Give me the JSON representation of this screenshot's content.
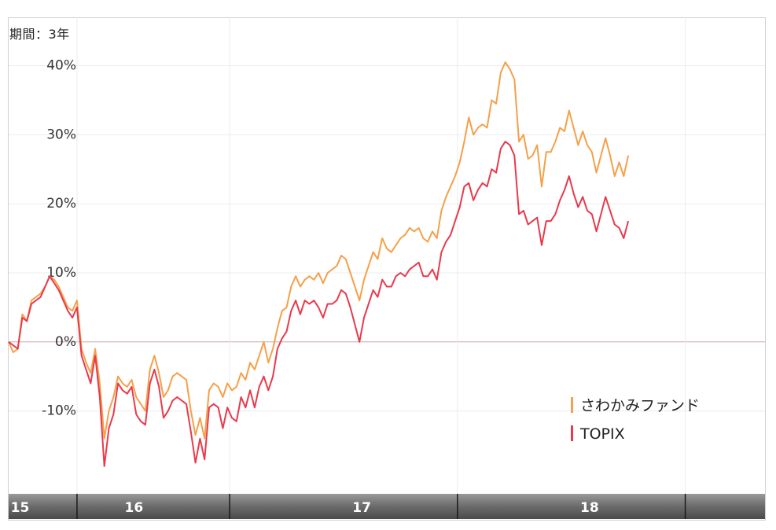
{
  "period_label": "期間：3年",
  "chart_data": {
    "type": "line",
    "yticks": [
      "40%",
      "30%",
      "20%",
      "10%",
      "0%",
      "-10%"
    ],
    "ylim": [
      -22,
      47
    ],
    "xlim": [
      2015.45,
      2018.77
    ],
    "xaxis_labels": [
      {
        "label": "15",
        "year": 2015.5
      },
      {
        "label": "16",
        "year": 2016
      },
      {
        "label": "17",
        "year": 2017
      },
      {
        "label": "18",
        "year": 2018
      }
    ],
    "xaxis_dividers": [
      2015.75,
      2016.42,
      2017.42,
      2018.42
    ],
    "zero_line": true,
    "grid": true,
    "legend_position": "bottom-right",
    "series": [
      {
        "name": "さわかみファンド",
        "color": "#f5a04a",
        "points": [
          [
            2015.45,
            0
          ],
          [
            2015.47,
            -1.5
          ],
          [
            2015.49,
            -1
          ],
          [
            2015.51,
            4
          ],
          [
            2015.53,
            3
          ],
          [
            2015.55,
            6
          ],
          [
            2015.57,
            6.5
          ],
          [
            2015.59,
            7
          ],
          [
            2015.61,
            8
          ],
          [
            2015.63,
            9.5
          ],
          [
            2015.65,
            9
          ],
          [
            2015.67,
            8
          ],
          [
            2015.69,
            6.5
          ],
          [
            2015.71,
            5
          ],
          [
            2015.73,
            4.5
          ],
          [
            2015.75,
            6
          ],
          [
            2015.77,
            -1
          ],
          [
            2015.79,
            -3
          ],
          [
            2015.81,
            -4.5
          ],
          [
            2015.83,
            -1
          ],
          [
            2015.85,
            -6
          ],
          [
            2015.87,
            -14
          ],
          [
            2015.89,
            -10
          ],
          [
            2015.91,
            -8
          ],
          [
            2015.93,
            -5
          ],
          [
            2015.95,
            -6
          ],
          [
            2015.97,
            -6.5
          ],
          [
            2015.99,
            -5.5
          ],
          [
            2016.01,
            -8
          ],
          [
            2016.03,
            -9
          ],
          [
            2016.05,
            -10
          ],
          [
            2016.07,
            -4
          ],
          [
            2016.09,
            -2
          ],
          [
            2016.11,
            -4.5
          ],
          [
            2016.13,
            -8
          ],
          [
            2016.15,
            -7
          ],
          [
            2016.17,
            -5
          ],
          [
            2016.19,
            -4.5
          ],
          [
            2016.21,
            -5
          ],
          [
            2016.23,
            -5.5
          ],
          [
            2016.25,
            -10
          ],
          [
            2016.27,
            -13.5
          ],
          [
            2016.29,
            -11
          ],
          [
            2016.31,
            -14
          ],
          [
            2016.33,
            -7
          ],
          [
            2016.35,
            -6
          ],
          [
            2016.37,
            -6.5
          ],
          [
            2016.39,
            -8
          ],
          [
            2016.41,
            -6
          ],
          [
            2016.43,
            -7
          ],
          [
            2016.45,
            -6.5
          ],
          [
            2016.47,
            -4.5
          ],
          [
            2016.49,
            -5.5
          ],
          [
            2016.51,
            -3
          ],
          [
            2016.53,
            -4
          ],
          [
            2016.55,
            -2
          ],
          [
            2016.57,
            0
          ],
          [
            2016.59,
            -3
          ],
          [
            2016.61,
            -1
          ],
          [
            2016.63,
            2
          ],
          [
            2016.65,
            4.5
          ],
          [
            2016.67,
            5
          ],
          [
            2016.69,
            8
          ],
          [
            2016.71,
            9.5
          ],
          [
            2016.73,
            8
          ],
          [
            2016.75,
            9
          ],
          [
            2016.77,
            9.5
          ],
          [
            2016.79,
            9
          ],
          [
            2016.81,
            10
          ],
          [
            2016.83,
            8.5
          ],
          [
            2016.85,
            10
          ],
          [
            2016.87,
            10.5
          ],
          [
            2016.89,
            11
          ],
          [
            2016.91,
            12.5
          ],
          [
            2016.93,
            12
          ],
          [
            2016.95,
            10
          ],
          [
            2016.97,
            8
          ],
          [
            2016.99,
            6
          ],
          [
            2017.01,
            9
          ],
          [
            2017.03,
            11
          ],
          [
            2017.05,
            13
          ],
          [
            2017.07,
            12
          ],
          [
            2017.09,
            15
          ],
          [
            2017.11,
            13.5
          ],
          [
            2017.13,
            13
          ],
          [
            2017.15,
            14
          ],
          [
            2017.17,
            15
          ],
          [
            2017.19,
            15.5
          ],
          [
            2017.21,
            16.5
          ],
          [
            2017.23,
            16
          ],
          [
            2017.25,
            16.5
          ],
          [
            2017.27,
            15
          ],
          [
            2017.29,
            14.5
          ],
          [
            2017.31,
            16
          ],
          [
            2017.33,
            15
          ],
          [
            2017.35,
            19
          ],
          [
            2017.37,
            21
          ],
          [
            2017.39,
            22.5
          ],
          [
            2017.41,
            24
          ],
          [
            2017.43,
            26
          ],
          [
            2017.45,
            29
          ],
          [
            2017.47,
            32.5
          ],
          [
            2017.49,
            30
          ],
          [
            2017.51,
            31
          ],
          [
            2017.53,
            31.5
          ],
          [
            2017.55,
            31
          ],
          [
            2017.57,
            35
          ],
          [
            2017.59,
            34.5
          ],
          [
            2017.61,
            39
          ],
          [
            2017.63,
            40.5
          ],
          [
            2017.65,
            39.5
          ],
          [
            2017.67,
            38
          ],
          [
            2017.69,
            29
          ],
          [
            2017.71,
            30
          ],
          [
            2017.73,
            26.5
          ],
          [
            2017.75,
            27
          ],
          [
            2017.77,
            28.5
          ],
          [
            2017.79,
            22.5
          ],
          [
            2017.81,
            27.5
          ],
          [
            2017.83,
            27.5
          ],
          [
            2017.85,
            29
          ],
          [
            2017.87,
            31
          ],
          [
            2017.89,
            30.5
          ],
          [
            2017.91,
            33.5
          ],
          [
            2017.93,
            31
          ],
          [
            2017.95,
            28.5
          ],
          [
            2017.97,
            30.5
          ],
          [
            2017.99,
            28.5
          ],
          [
            2018.01,
            27.5
          ],
          [
            2018.03,
            24.5
          ],
          [
            2018.05,
            27
          ],
          [
            2018.07,
            29.5
          ],
          [
            2018.09,
            27
          ],
          [
            2018.11,
            24
          ],
          [
            2018.13,
            26
          ],
          [
            2018.15,
            24
          ],
          [
            2018.17,
            27
          ]
        ]
      },
      {
        "name": "TOPIX",
        "color": "#e83a4c",
        "points": [
          [
            2015.45,
            0
          ],
          [
            2015.47,
            -0.5
          ],
          [
            2015.49,
            -1
          ],
          [
            2015.51,
            3.5
          ],
          [
            2015.53,
            3
          ],
          [
            2015.55,
            5.5
          ],
          [
            2015.57,
            6
          ],
          [
            2015.59,
            6.5
          ],
          [
            2015.61,
            8
          ],
          [
            2015.63,
            9.5
          ],
          [
            2015.65,
            8.5
          ],
          [
            2015.67,
            7.5
          ],
          [
            2015.69,
            6
          ],
          [
            2015.71,
            4.5
          ],
          [
            2015.73,
            3.5
          ],
          [
            2015.75,
            5
          ],
          [
            2015.77,
            -2
          ],
          [
            2015.79,
            -4
          ],
          [
            2015.81,
            -6
          ],
          [
            2015.83,
            -2
          ],
          [
            2015.85,
            -8
          ],
          [
            2015.87,
            -18
          ],
          [
            2015.89,
            -12.5
          ],
          [
            2015.91,
            -10.5
          ],
          [
            2015.93,
            -6
          ],
          [
            2015.95,
            -7
          ],
          [
            2015.97,
            -7.5
          ],
          [
            2015.99,
            -6.5
          ],
          [
            2016.01,
            -10.5
          ],
          [
            2016.03,
            -11.5
          ],
          [
            2016.05,
            -12
          ],
          [
            2016.07,
            -6
          ],
          [
            2016.09,
            -4
          ],
          [
            2016.11,
            -6.5
          ],
          [
            2016.13,
            -11
          ],
          [
            2016.15,
            -10
          ],
          [
            2016.17,
            -8.5
          ],
          [
            2016.19,
            -8
          ],
          [
            2016.21,
            -8.5
          ],
          [
            2016.23,
            -9
          ],
          [
            2016.25,
            -13
          ],
          [
            2016.27,
            -17.5
          ],
          [
            2016.29,
            -14
          ],
          [
            2016.31,
            -17
          ],
          [
            2016.33,
            -9.5
          ],
          [
            2016.35,
            -9
          ],
          [
            2016.37,
            -9.5
          ],
          [
            2016.39,
            -12.5
          ],
          [
            2016.41,
            -9.5
          ],
          [
            2016.43,
            -11
          ],
          [
            2016.45,
            -11.5
          ],
          [
            2016.47,
            -8
          ],
          [
            2016.49,
            -9.5
          ],
          [
            2016.51,
            -7
          ],
          [
            2016.53,
            -9.5
          ],
          [
            2016.55,
            -6.5
          ],
          [
            2016.57,
            -5
          ],
          [
            2016.59,
            -7
          ],
          [
            2016.61,
            -5
          ],
          [
            2016.63,
            -1
          ],
          [
            2016.65,
            0.5
          ],
          [
            2016.67,
            1.5
          ],
          [
            2016.69,
            4.5
          ],
          [
            2016.71,
            6
          ],
          [
            2016.73,
            4
          ],
          [
            2016.75,
            6
          ],
          [
            2016.77,
            5.5
          ],
          [
            2016.79,
            6
          ],
          [
            2016.81,
            5
          ],
          [
            2016.83,
            3.5
          ],
          [
            2016.85,
            5.5
          ],
          [
            2016.87,
            5.5
          ],
          [
            2016.89,
            6
          ],
          [
            2016.91,
            7.5
          ],
          [
            2016.93,
            7
          ],
          [
            2016.95,
            5
          ],
          [
            2016.97,
            2.5
          ],
          [
            2016.99,
            0
          ],
          [
            2017.01,
            3.5
          ],
          [
            2017.03,
            5.5
          ],
          [
            2017.05,
            7.5
          ],
          [
            2017.07,
            6.5
          ],
          [
            2017.09,
            9
          ],
          [
            2017.11,
            8
          ],
          [
            2017.13,
            8
          ],
          [
            2017.15,
            9.5
          ],
          [
            2017.17,
            10
          ],
          [
            2017.19,
            9.5
          ],
          [
            2017.21,
            10.5
          ],
          [
            2017.23,
            11
          ],
          [
            2017.25,
            11.5
          ],
          [
            2017.27,
            9.5
          ],
          [
            2017.29,
            9.5
          ],
          [
            2017.31,
            10.5
          ],
          [
            2017.33,
            9
          ],
          [
            2017.35,
            13
          ],
          [
            2017.37,
            14.5
          ],
          [
            2017.39,
            15.5
          ],
          [
            2017.41,
            17.5
          ],
          [
            2017.43,
            19.5
          ],
          [
            2017.45,
            22.5
          ],
          [
            2017.47,
            23
          ],
          [
            2017.49,
            20.5
          ],
          [
            2017.51,
            22
          ],
          [
            2017.53,
            23
          ],
          [
            2017.55,
            22.5
          ],
          [
            2017.57,
            25
          ],
          [
            2017.59,
            24.5
          ],
          [
            2017.61,
            28
          ],
          [
            2017.63,
            29
          ],
          [
            2017.65,
            28.5
          ],
          [
            2017.67,
            27
          ],
          [
            2017.69,
            18.5
          ],
          [
            2017.71,
            19
          ],
          [
            2017.73,
            17
          ],
          [
            2017.75,
            17.5
          ],
          [
            2017.77,
            18
          ],
          [
            2017.79,
            14
          ],
          [
            2017.81,
            17.5
          ],
          [
            2017.83,
            17.5
          ],
          [
            2017.85,
            18.5
          ],
          [
            2017.87,
            20.5
          ],
          [
            2017.89,
            22
          ],
          [
            2017.91,
            24
          ],
          [
            2017.93,
            21.5
          ],
          [
            2017.95,
            19.5
          ],
          [
            2017.97,
            21
          ],
          [
            2017.99,
            19
          ],
          [
            2018.01,
            18.5
          ],
          [
            2018.03,
            16
          ],
          [
            2018.05,
            18.5
          ],
          [
            2018.07,
            21
          ],
          [
            2018.09,
            19
          ],
          [
            2018.11,
            17
          ],
          [
            2018.13,
            16.5
          ],
          [
            2018.15,
            15
          ],
          [
            2018.17,
            17.5
          ]
        ]
      }
    ]
  }
}
